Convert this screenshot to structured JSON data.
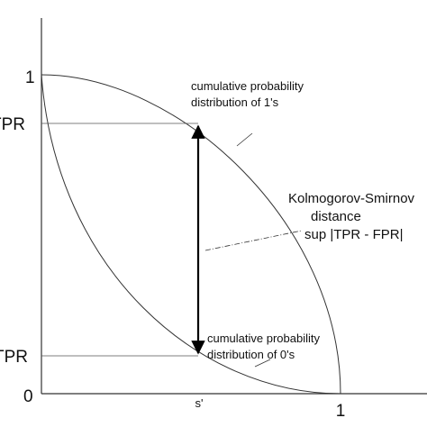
{
  "axes": {
    "y_top": "1",
    "y_upper": "TPR",
    "y_lower": "TPR",
    "origin": "0",
    "x_mid": "s'",
    "x_end": "1"
  },
  "labels": {
    "upper_curve": [
      "cumulative probability",
      "distribution of 1's"
    ],
    "ks": [
      "Kolmogorov-Smirnov",
      "distance",
      "sup |TPR - FPR|"
    ],
    "lower_curve": [
      "cumulative probability",
      "distribution of 0's"
    ]
  }
}
